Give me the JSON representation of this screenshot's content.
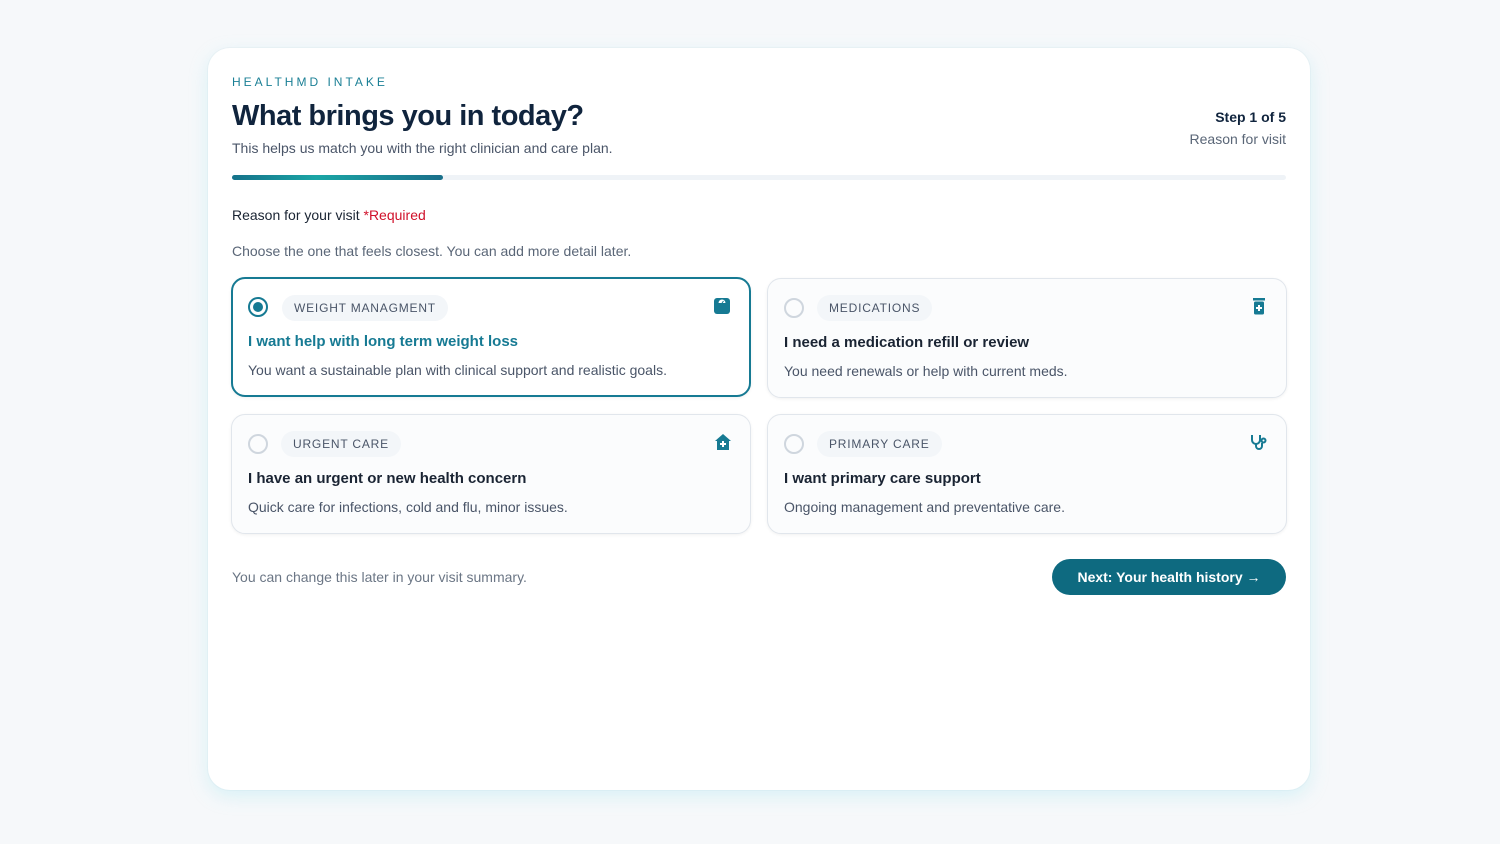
{
  "header": {
    "brand": "HEALTHMD INTAKE",
    "title": "What brings you in today?",
    "subtitle": "This helps us match you with the right clinician and care plan.",
    "step": "Step 1 of 5",
    "step_label": "Reason for visit",
    "progress_percent": 20
  },
  "form": {
    "label": "Reason for your visit",
    "required": "*Required",
    "hint": "Choose the one that feels closest. You can add more detail later.",
    "selected": 0,
    "options": [
      {
        "tag": "WEIGHT MANAGMENT",
        "title": "I want help with long term weight loss",
        "desc": "You want a sustainable plan with clinical support and realistic goals.",
        "icon": "scale-icon"
      },
      {
        "tag": "MEDICATIONS",
        "title": "I need a medication refill or review",
        "desc": "You need renewals or help with current meds.",
        "icon": "pill-bottle-icon"
      },
      {
        "tag": "URGENT CARE",
        "title": "I have an urgent or new health concern",
        "desc": "Quick care for infections, cold and flu, minor issues.",
        "icon": "house-medical-icon"
      },
      {
        "tag": "PRIMARY CARE",
        "title": "I want primary care support",
        "desc": "Ongoing management and preventative care.",
        "icon": "stethoscope-icon"
      }
    ]
  },
  "footer": {
    "note": "You can change this later in your visit summary.",
    "next_label": "Next: Your health history →"
  },
  "colors": {
    "accent": "#167a93",
    "button": "#0e6a80",
    "required": "#d0102a"
  }
}
